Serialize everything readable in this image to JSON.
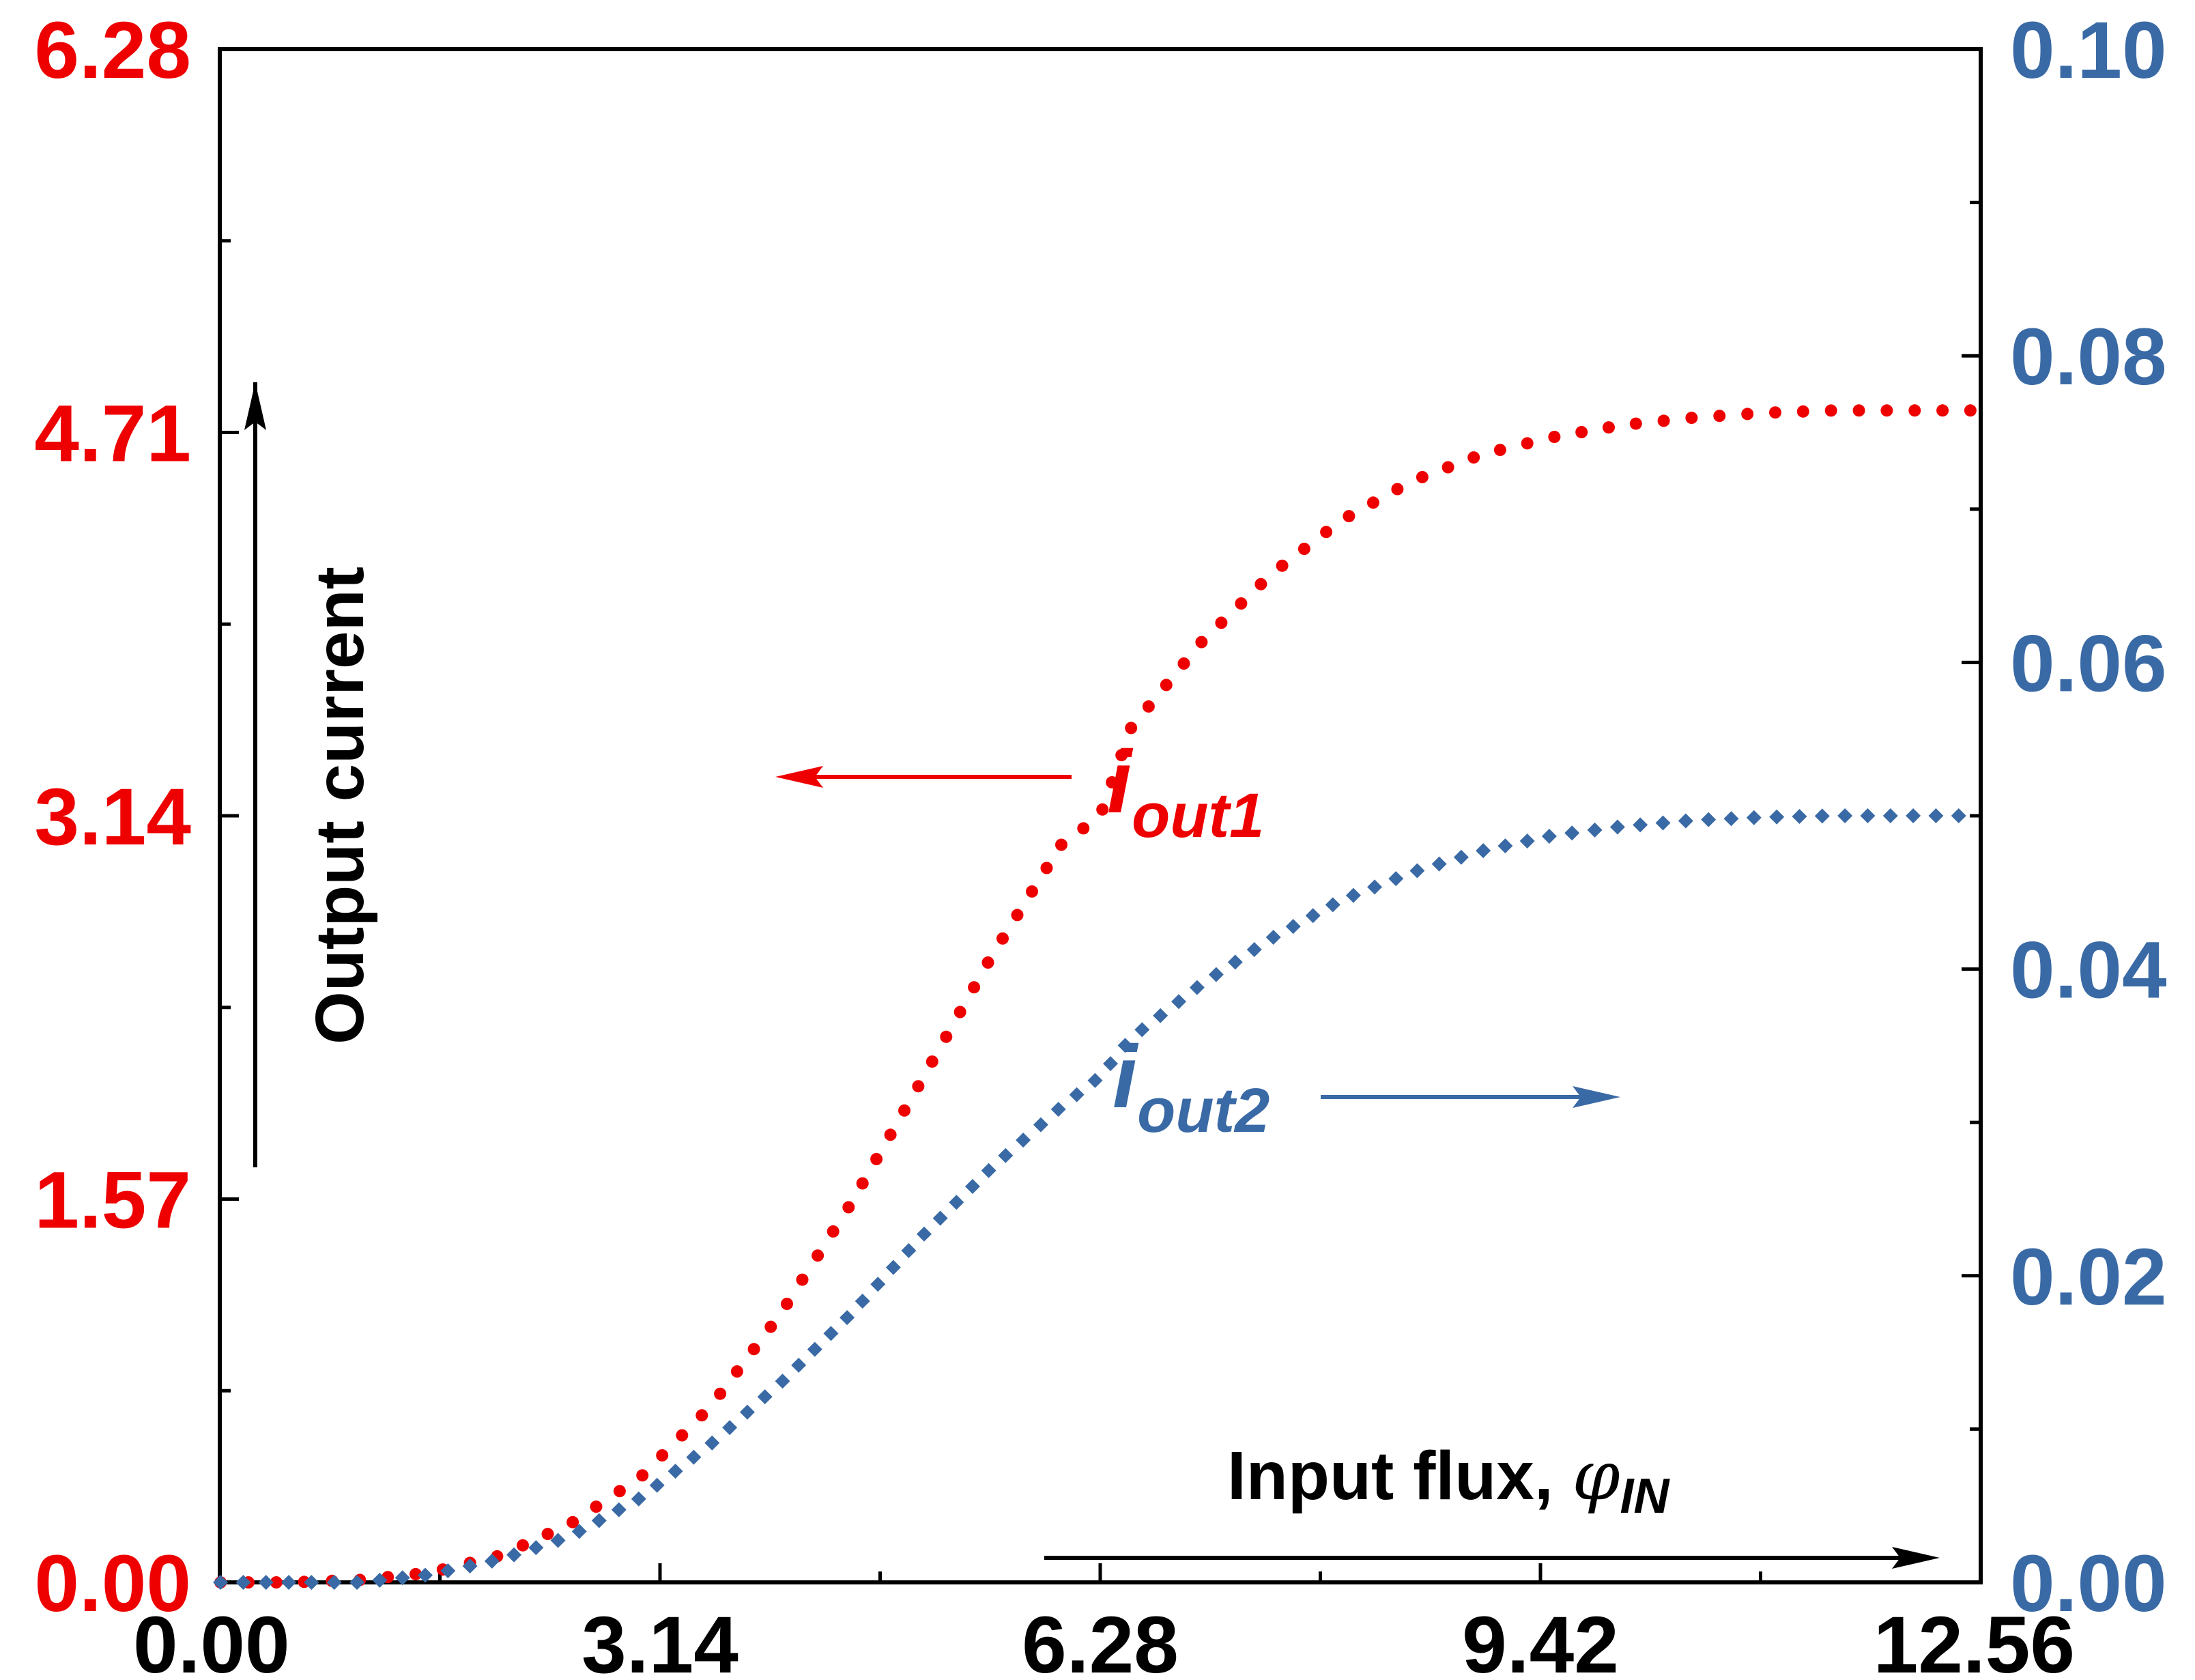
{
  "chart_data": {
    "type": "scatter",
    "xlabel": "Input flux, ",
    "xlabel_symbol": "φ",
    "xlabel_subscript": "IN",
    "ylabel": "Output current",
    "xlim": [
      0,
      12.56
    ],
    "ylim_left": [
      0,
      6.28
    ],
    "ylim_right": [
      0,
      0.1
    ],
    "x_ticks": [
      "0.00",
      "3.14",
      "6.28",
      "9.42",
      "12.56"
    ],
    "y_left_ticks": [
      "0.00",
      "1.57",
      "3.14",
      "4.71",
      "6.28"
    ],
    "y_right_ticks": [
      "0.00",
      "0.02",
      "0.04",
      "0.06",
      "0.08",
      "0.10"
    ],
    "grid": false,
    "colors": {
      "left_axis": "#ee0000",
      "right_axis": "#3a6aa5",
      "axis": "#000000"
    },
    "series": [
      {
        "name_main": "i",
        "name_sub": "out1",
        "axis": "left",
        "marker": "circle",
        "color": "#ee0000",
        "x": [
          0.0,
          0.5,
          1.0,
          1.5,
          2.0,
          2.5,
          3.0,
          3.5,
          4.0,
          4.5,
          5.0,
          5.5,
          6.0,
          6.28,
          6.5,
          7.0,
          7.5,
          8.0,
          8.5,
          9.0,
          9.5,
          10.0,
          10.5,
          11.0,
          11.5,
          12.0,
          12.56
        ],
        "y": [
          0.0,
          0.0,
          0.01,
          0.04,
          0.11,
          0.24,
          0.43,
          0.72,
          1.1,
          1.55,
          2.05,
          2.56,
          3.02,
          3.14,
          3.5,
          3.85,
          4.13,
          4.35,
          4.51,
          4.62,
          4.69,
          4.74,
          4.77,
          4.79,
          4.8,
          4.8,
          4.8
        ]
      },
      {
        "name_main": "i",
        "name_sub": "out2",
        "axis": "right",
        "marker": "diamond",
        "color": "#3a6aa5",
        "x": [
          0.0,
          0.5,
          1.0,
          1.5,
          2.0,
          2.5,
          3.0,
          3.5,
          4.0,
          4.5,
          5.0,
          5.5,
          6.0,
          6.28,
          6.5,
          7.0,
          7.5,
          8.0,
          8.5,
          9.0,
          9.5,
          10.0,
          10.5,
          11.0,
          11.5,
          12.0,
          12.56
        ],
        "y": [
          0.0,
          0.0,
          0.0,
          0.0005,
          0.0015,
          0.003,
          0.0055,
          0.009,
          0.013,
          0.0175,
          0.0225,
          0.027,
          0.031,
          0.033,
          0.0355,
          0.039,
          0.042,
          0.0445,
          0.0463,
          0.0477,
          0.0487,
          0.0493,
          0.0497,
          0.0499,
          0.05,
          0.05,
          0.05
        ]
      }
    ]
  }
}
